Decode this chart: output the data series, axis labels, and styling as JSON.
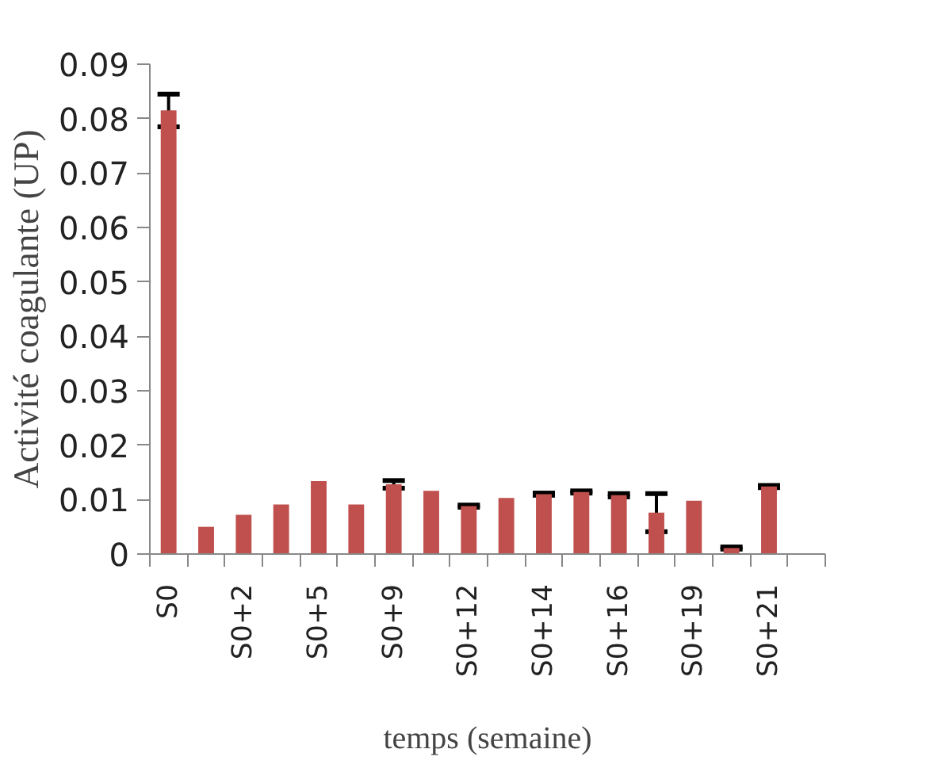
{
  "chart_data": {
    "type": "bar",
    "xlabel": "temps (semaine)",
    "ylabel": "Activité coagulante (UP)",
    "categories": [
      "S0",
      null,
      "S0+2",
      null,
      "S0+5",
      null,
      "S0+9",
      null,
      "S0+12",
      null,
      "S0+14",
      null,
      "S0+16",
      null,
      "S0+19",
      null,
      "S0+21",
      null
    ],
    "values": [
      0.0815,
      0.005,
      0.0072,
      0.0091,
      0.0134,
      0.0091,
      0.0128,
      0.0116,
      0.0088,
      0.0103,
      0.011,
      0.0114,
      0.0108,
      0.0076,
      0.0098,
      0.0011,
      0.0124,
      null
    ],
    "errors": [
      0.003,
      null,
      null,
      null,
      null,
      null,
      0.0007,
      null,
      0.0002,
      null,
      0.0002,
      0.0002,
      0.0003,
      0.0035,
      null,
      0.0002,
      0.0002,
      null
    ],
    "color": "#c0504d",
    "ylim": [
      0,
      0.09
    ],
    "yticks": [
      0,
      0.01,
      0.02,
      0.03,
      0.04,
      0.05,
      0.06,
      0.07,
      0.08,
      0.09
    ],
    "grid": false
  }
}
